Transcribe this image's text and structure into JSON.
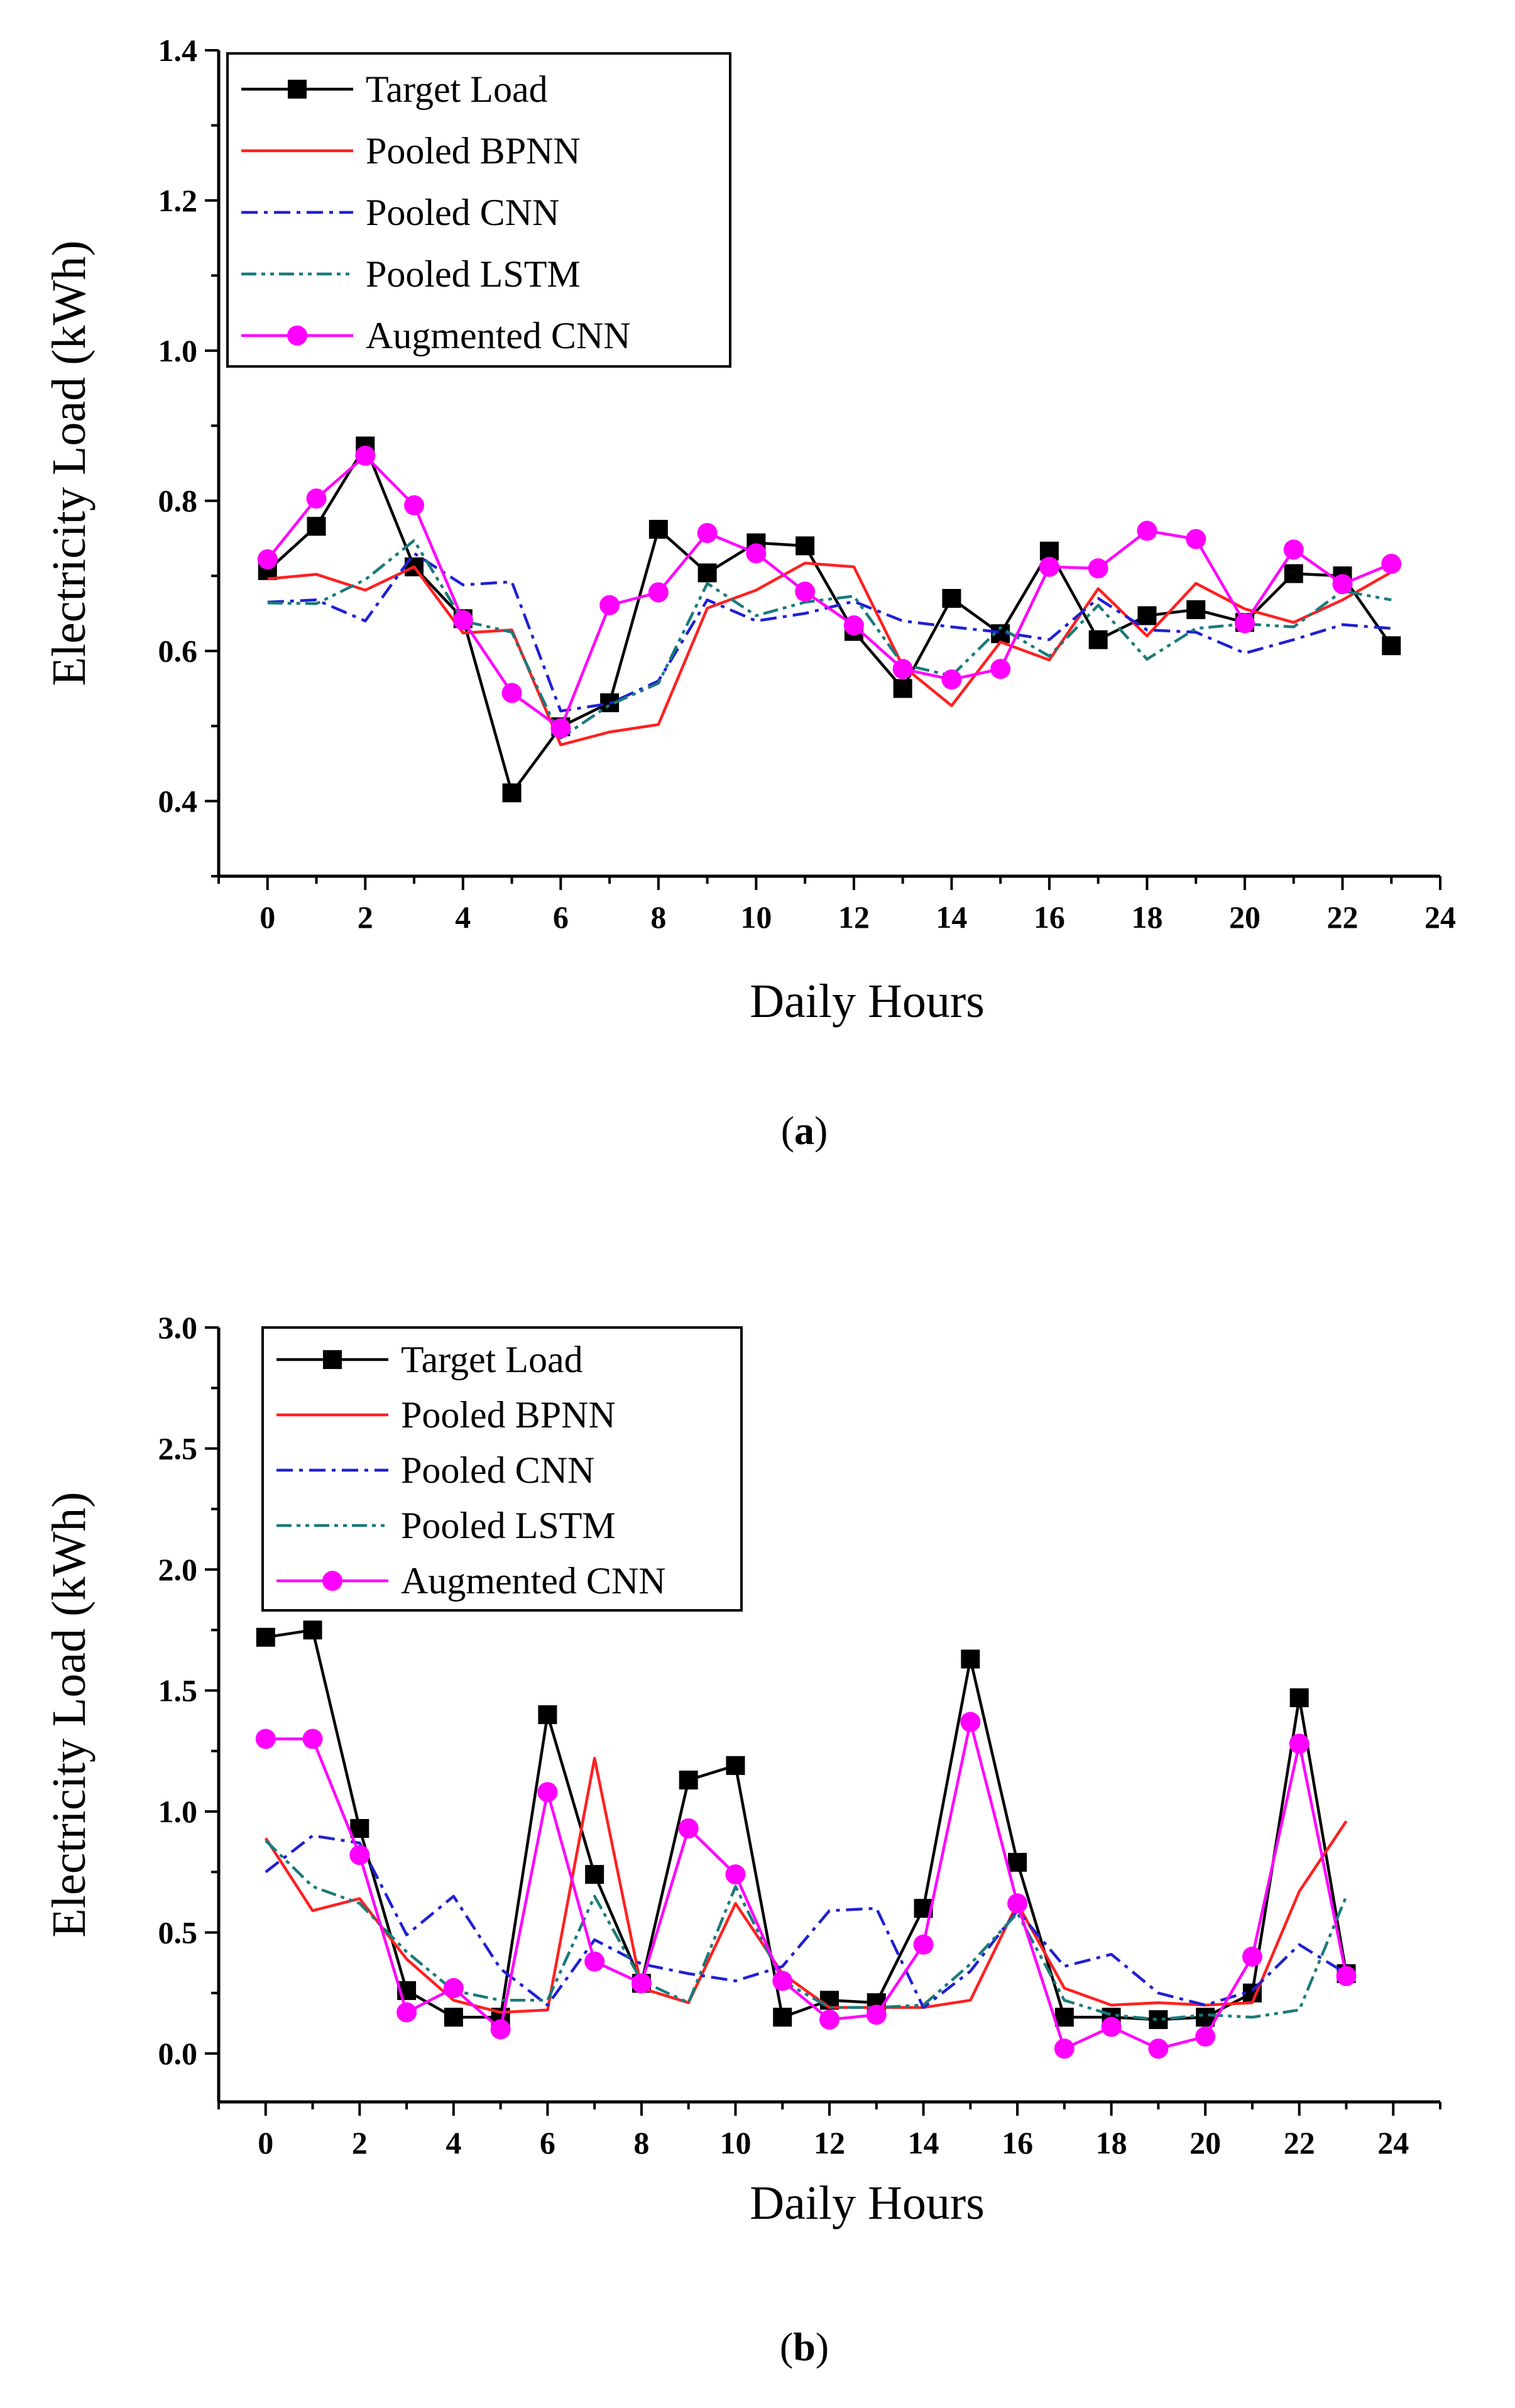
{
  "chart_data": [
    {
      "type": "line",
      "caption_letter": "a",
      "xlabel": "Daily Hours",
      "ylabel": "Electricity Load (kWh)",
      "xlim": [
        -1,
        24
      ],
      "ylim": [
        0.3,
        1.4
      ],
      "xticks": [
        0,
        2,
        4,
        6,
        8,
        10,
        12,
        14,
        16,
        18,
        20,
        22,
        24
      ],
      "yticks": [
        0.4,
        0.6,
        0.8,
        1.0,
        1.2,
        1.4
      ],
      "ytick_labels": [
        "0.4",
        "0.6",
        "0.8",
        "1.0",
        "1.2",
        "1.4"
      ],
      "legend": "top-left",
      "x": [
        0,
        1,
        2,
        3,
        4,
        5,
        6,
        7,
        8,
        9,
        10,
        11,
        12,
        13,
        14,
        15,
        16,
        17,
        18,
        19,
        20,
        21,
        22,
        23
      ],
      "series": [
        {
          "name": "Target Load",
          "color": "#000000",
          "dash": "solid",
          "marker": "square",
          "values": [
            0.707,
            0.766,
            0.873,
            0.712,
            0.643,
            0.411,
            0.499,
            0.531,
            0.762,
            0.704,
            0.744,
            0.74,
            0.626,
            0.55,
            0.67,
            0.623,
            0.733,
            0.615,
            0.647,
            0.655,
            0.638,
            0.703,
            0.7,
            0.607
          ]
        },
        {
          "name": "Pooled BPNN",
          "color": "#ff2020",
          "dash": "solid",
          "marker": "none",
          "values": [
            0.696,
            0.702,
            0.681,
            0.712,
            0.624,
            0.628,
            0.475,
            0.492,
            0.502,
            0.657,
            0.681,
            0.717,
            0.712,
            0.58,
            0.527,
            0.612,
            0.588,
            0.683,
            0.62,
            0.69,
            0.656,
            0.638,
            0.668,
            0.705
          ]
        },
        {
          "name": "Pooled CNN",
          "color": "#1f1fd4",
          "dash": "dashdot",
          "marker": "none",
          "values": [
            0.665,
            0.668,
            0.64,
            0.73,
            0.688,
            0.692,
            0.52,
            0.53,
            0.56,
            0.668,
            0.64,
            0.65,
            0.666,
            0.64,
            0.632,
            0.625,
            0.615,
            0.67,
            0.628,
            0.625,
            0.597,
            0.615,
            0.635,
            0.63
          ]
        },
        {
          "name": "Pooled LSTM",
          "color": "#1a7a7a",
          "dash": "dashdotdot",
          "marker": "none",
          "values": [
            0.664,
            0.663,
            0.695,
            0.747,
            0.64,
            0.625,
            0.484,
            0.528,
            0.557,
            0.69,
            0.647,
            0.665,
            0.673,
            0.582,
            0.567,
            0.631,
            0.593,
            0.661,
            0.589,
            0.63,
            0.636,
            0.632,
            0.68,
            0.668
          ]
        },
        {
          "name": "Augmented CNN",
          "color": "#ff00ff",
          "dash": "solid",
          "marker": "circle",
          "values": [
            0.722,
            0.803,
            0.86,
            0.794,
            0.641,
            0.544,
            0.497,
            0.661,
            0.678,
            0.757,
            0.73,
            0.679,
            0.634,
            0.576,
            0.562,
            0.576,
            0.712,
            0.71,
            0.76,
            0.749,
            0.637,
            0.735,
            0.689,
            0.716
          ]
        }
      ]
    },
    {
      "type": "line",
      "caption_letter": "b",
      "xlabel": "Daily Hours",
      "ylabel": "Electricity Load (kWh)",
      "xlim": [
        -1,
        25
      ],
      "ylim": [
        -0.2,
        3.0
      ],
      "xticks": [
        0,
        2,
        4,
        6,
        8,
        10,
        12,
        14,
        16,
        18,
        20,
        22,
        24
      ],
      "yticks": [
        0.0,
        0.5,
        1.0,
        1.5,
        2.0,
        2.5,
        3.0
      ],
      "ytick_labels": [
        "0.0",
        "0.5",
        "1.0",
        "1.5",
        "2.0",
        "2.5",
        "3.0"
      ],
      "legend": "top-left",
      "x": [
        0,
        1,
        2,
        3,
        4,
        5,
        6,
        7,
        8,
        9,
        10,
        11,
        12,
        13,
        14,
        15,
        16,
        17,
        18,
        19,
        20,
        21,
        22,
        23
      ],
      "series": [
        {
          "name": "Target Load",
          "color": "#000000",
          "dash": "solid",
          "marker": "square",
          "values": [
            1.72,
            1.75,
            0.93,
            0.26,
            0.15,
            0.15,
            1.4,
            0.74,
            0.29,
            1.13,
            1.19,
            0.15,
            0.22,
            0.21,
            0.6,
            1.63,
            0.79,
            0.15,
            0.15,
            0.14,
            0.15,
            0.25,
            1.47,
            0.33
          ]
        },
        {
          "name": "Pooled BPNN",
          "color": "#ff2020",
          "dash": "solid",
          "marker": "none",
          "values": [
            0.89,
            0.59,
            0.64,
            0.39,
            0.22,
            0.17,
            0.18,
            1.22,
            0.27,
            0.21,
            0.62,
            0.33,
            0.19,
            0.19,
            0.19,
            0.22,
            0.62,
            0.27,
            0.2,
            0.21,
            0.2,
            0.21,
            0.67,
            0.96
          ]
        },
        {
          "name": "Pooled CNN",
          "color": "#1f1fd4",
          "dash": "dashdot",
          "marker": "none",
          "values": [
            0.75,
            0.9,
            0.87,
            0.49,
            0.65,
            0.35,
            0.2,
            0.47,
            0.37,
            0.33,
            0.3,
            0.36,
            0.59,
            0.6,
            0.19,
            0.34,
            0.59,
            0.36,
            0.41,
            0.25,
            0.2,
            0.26,
            0.45,
            0.33
          ]
        },
        {
          "name": "Pooled LSTM",
          "color": "#1a7a7a",
          "dash": "dashdotdot",
          "marker": "none",
          "values": [
            0.88,
            0.69,
            0.62,
            0.42,
            0.26,
            0.22,
            0.22,
            0.65,
            0.3,
            0.21,
            0.69,
            0.3,
            0.19,
            0.19,
            0.2,
            0.37,
            0.58,
            0.22,
            0.16,
            0.14,
            0.16,
            0.15,
            0.18,
            0.65
          ]
        },
        {
          "name": "Augmented CNN",
          "color": "#ff00ff",
          "dash": "solid",
          "marker": "circle",
          "values": [
            1.3,
            1.3,
            0.82,
            0.17,
            0.27,
            0.1,
            1.08,
            0.38,
            0.29,
            0.93,
            0.74,
            0.3,
            0.14,
            0.16,
            0.45,
            1.37,
            0.62,
            0.02,
            0.11,
            0.02,
            0.07,
            0.4,
            1.28,
            0.32
          ]
        }
      ]
    }
  ]
}
